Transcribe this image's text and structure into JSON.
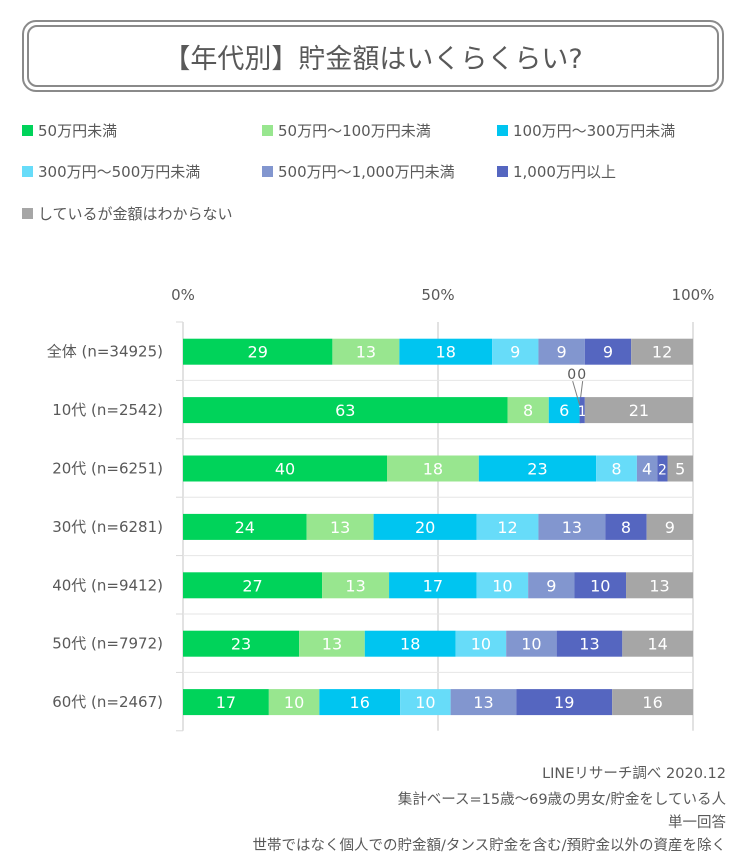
{
  "title": "【年代別】貯金額はいくらくらい?",
  "chart_data": {
    "type": "bar",
    "orientation": "horizontal",
    "stacked": "100%",
    "xlim": [
      0,
      100
    ],
    "x_ticks": [
      "0%",
      "50%",
      "100%"
    ],
    "grid": true,
    "legend_placement": "top",
    "categories": [
      "全体 (n=34925)",
      "10代 (n=2542)",
      "20代 (n=6251)",
      "30代 (n=6281)",
      "40代 (n=9412)",
      "50代 (n=7972)",
      "60代 (n=2467)"
    ],
    "series": [
      {
        "name": "50万円未満",
        "color": "#00d35a",
        "values": [
          29,
          63,
          40,
          24,
          27,
          23,
          17
        ]
      },
      {
        "name": "50万円～100万円未満",
        "color": "#98e68f",
        "values": [
          13,
          8,
          18,
          13,
          13,
          13,
          10
        ]
      },
      {
        "name": "100万円～300万円未満",
        "color": "#00c5f0",
        "values": [
          18,
          6,
          23,
          20,
          17,
          18,
          16
        ]
      },
      {
        "name": "300万円～500万円未満",
        "color": "#67dcf9",
        "values": [
          9,
          0,
          8,
          12,
          10,
          10,
          10
        ]
      },
      {
        "name": "500万円～1,000万円未満",
        "color": "#8296cf",
        "values": [
          9,
          0,
          4,
          13,
          9,
          10,
          13
        ]
      },
      {
        "name": "1,000万円以上",
        "color": "#5566c0",
        "values": [
          9,
          1,
          2,
          8,
          10,
          13,
          19
        ]
      },
      {
        "name": "しているが金額はわからない",
        "color": "#a6a6a6",
        "values": [
          12,
          21,
          5,
          9,
          13,
          14,
          16
        ]
      }
    ]
  },
  "footer": {
    "source": "LINEリサーチ調べ 2020.12",
    "base": "集計ベース=15歳～69歳の男女/貯金をしている人",
    "answer_type": "単一回答",
    "note": "世帯ではなく個人での貯金額/タンス貯金を含む/預貯金以外の資産を除く"
  }
}
